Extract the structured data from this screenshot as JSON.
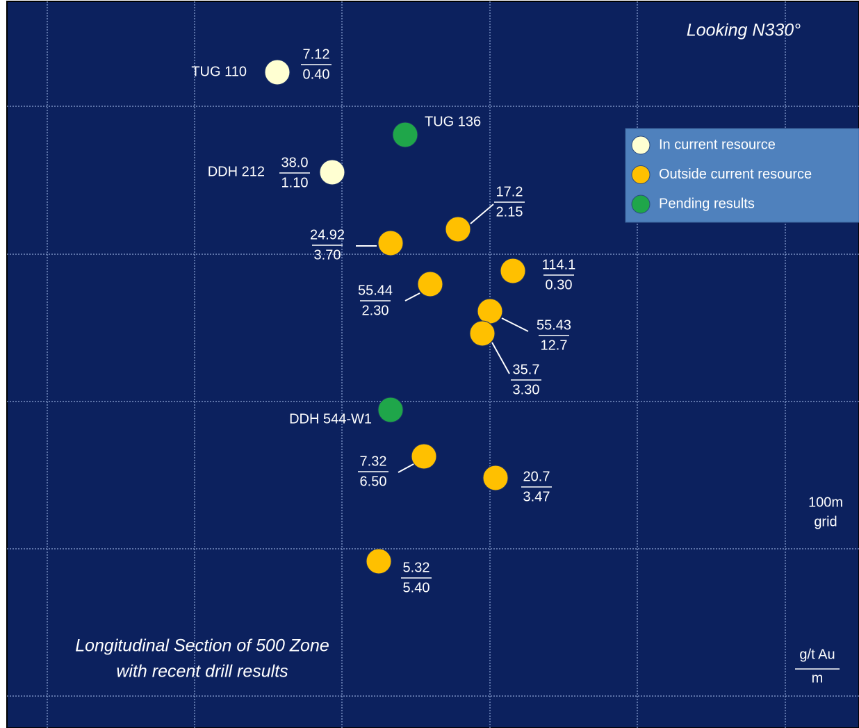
{
  "view": "Looking  N330°",
  "legend": {
    "items": [
      {
        "label": "In current resource",
        "color": "#ffffd2"
      },
      {
        "label": "Outside current resource",
        "color": "#ffc000"
      },
      {
        "label": "Pending results",
        "color": "#1fa64a"
      }
    ]
  },
  "holes": [
    {
      "name": "TUG 110",
      "grade": "7.12",
      "width": "0.40",
      "color": "#ffffd2"
    },
    {
      "name": "TUG 136",
      "color": "#1fa64a"
    },
    {
      "name": "DDH 212",
      "grade": "38.0",
      "width": "1.10",
      "color": "#ffffd2"
    },
    {
      "grade": "17.2",
      "width": "2.15",
      "color": "#ffc000"
    },
    {
      "grade": "24.92",
      "width": "3.70",
      "color": "#ffc000"
    },
    {
      "grade": "114.1",
      "width": "0.30",
      "color": "#ffc000"
    },
    {
      "grade": "55.44",
      "width": "2.30",
      "color": "#ffc000"
    },
    {
      "grade": "55.43",
      "width": "12.7",
      "color": "#ffc000"
    },
    {
      "grade": "35.7",
      "width": "3.30",
      "color": "#ffc000"
    },
    {
      "name": "DDH 544-W1",
      "color": "#1fa64a"
    },
    {
      "grade": "7.32",
      "width": "6.50",
      "color": "#ffc000"
    },
    {
      "grade": "20.7",
      "width": "3.47",
      "color": "#ffc000"
    },
    {
      "grade": "5.32",
      "width": "5.40",
      "color": "#ffc000"
    }
  ],
  "grid_note": [
    "100m",
    "grid"
  ],
  "units": {
    "grade": "g/t Au",
    "width": "m"
  },
  "title": [
    "Longitudinal Section  of 500 Zone",
    "with recent drill results"
  ]
}
